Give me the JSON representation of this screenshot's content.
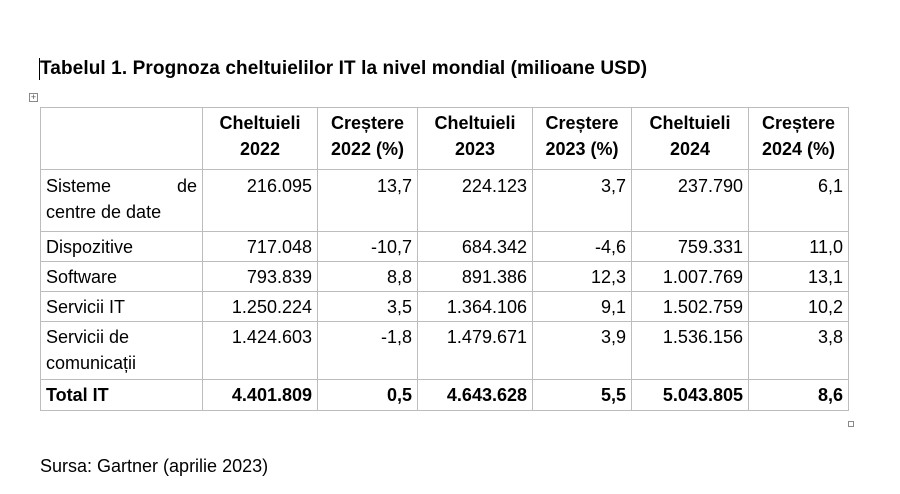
{
  "caption": "Tabelul 1. Prognoza cheltuielilor IT la nivel mondial (milioane USD)",
  "table": {
    "headers": [
      "",
      "Cheltuieli 2022",
      "Creștere 2022 (%)",
      "Cheltuieli 2023",
      "Creștere 2023 (%)",
      "Cheltuieli 2024",
      "Creștere 2024 (%)"
    ],
    "header_lines": [
      [
        "",
        ""
      ],
      [
        "Cheltuieli",
        "2022"
      ],
      [
        "Creștere",
        "2022 (%)"
      ],
      [
        "Cheltuieli",
        "2023"
      ],
      [
        "Creștere",
        "2023 (%)"
      ],
      [
        "Cheltuieli",
        "2024"
      ],
      [
        "Creștere",
        "2024 (%)"
      ]
    ],
    "rows": [
      {
        "label": "Sisteme de centre de date",
        "label_lines": [
          "Sisteme de",
          "centre de date"
        ],
        "values": [
          "216.095",
          "13,7",
          "224.123",
          "3,7",
          "237.790",
          "6,1"
        ]
      },
      {
        "label": "Dispozitive",
        "values": [
          "717.048",
          "-10,7",
          "684.342",
          "-4,6",
          "759.331",
          "11,0"
        ]
      },
      {
        "label": "Software",
        "values": [
          "793.839",
          "8,8",
          "891.386",
          "12,3",
          "1.007.769",
          "13,1"
        ]
      },
      {
        "label": "Servicii IT",
        "values": [
          "1.250.224",
          "3,5",
          "1.364.106",
          "9,1",
          "1.502.759",
          "10,2"
        ]
      },
      {
        "label": "Servicii de comunicații",
        "label_lines": [
          "Servicii de",
          "comunicații"
        ],
        "values": [
          "1.424.603",
          "-1,8",
          "1.479.671",
          "3,9",
          "1.536.156",
          "3,8"
        ]
      }
    ],
    "total": {
      "label": "Total IT",
      "values": [
        "4.401.809",
        "0,5",
        "4.643.628",
        "5,5",
        "5.043.805",
        "8,6"
      ]
    }
  },
  "source": "Sursa: Gartner (aprilie 2023)",
  "icons": {
    "move_handle": "table-move-handle-icon",
    "resize_handle": "table-resize-handle-icon"
  }
}
